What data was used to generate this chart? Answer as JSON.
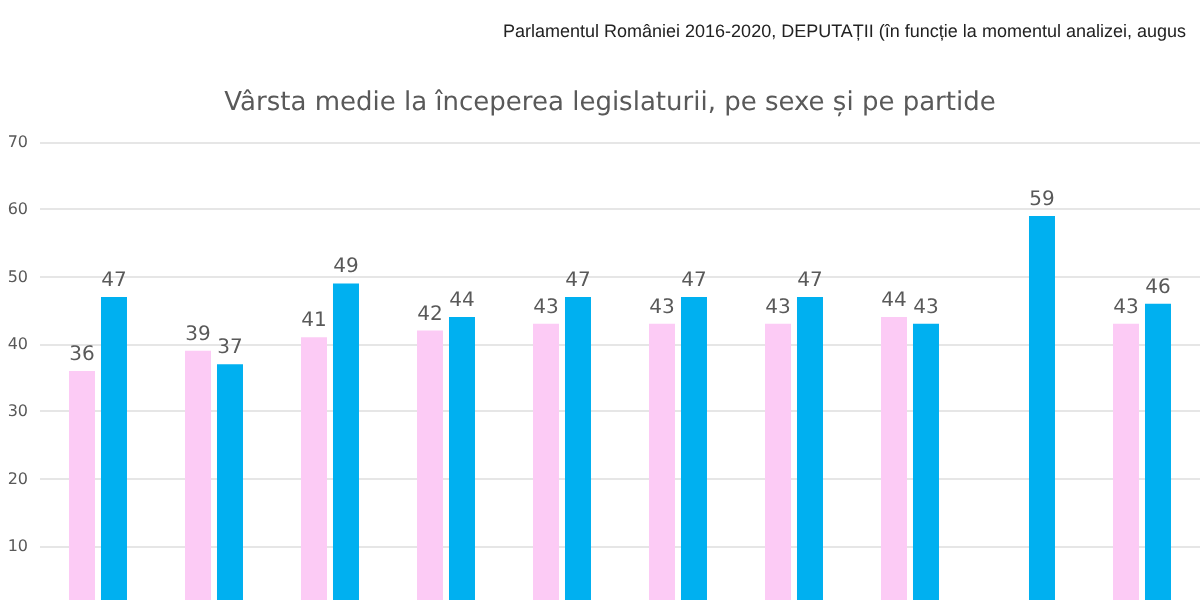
{
  "chart_data": {
    "type": "bar",
    "title": "Vârsta medie la începerea legislaturii, pe sexe și pe partide",
    "subtitle": "Parlamentul României 2016-2020, DEPUTAȚII (în funcție la momentul analizei, augus",
    "categories": [
      null,
      null,
      null,
      null,
      null,
      null,
      null,
      null,
      null,
      null
    ],
    "series": [
      {
        "color": "#fccbf5",
        "values": [
          36,
          39,
          41,
          42,
          43,
          43,
          43,
          44,
          null,
          43
        ]
      },
      {
        "color": "#00b0f0",
        "values": [
          47,
          37,
          49,
          44,
          47,
          47,
          47,
          43,
          59,
          46
        ]
      }
    ],
    "ylim": [
      2,
      70
    ],
    "yticks": [
      10,
      20,
      30,
      40,
      50,
      60,
      70
    ],
    "grid": "y",
    "data_labels": true,
    "tick_labels": "y"
  }
}
